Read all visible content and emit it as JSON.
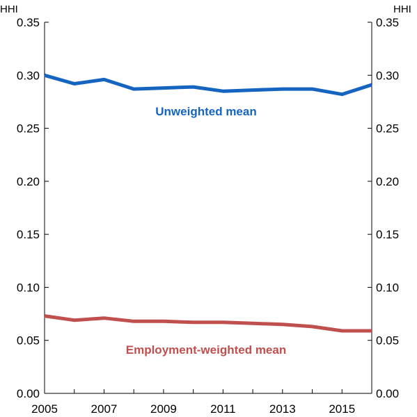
{
  "chart_data": {
    "type": "line",
    "title": "",
    "xlabel": "",
    "ylabel_left": "HHI",
    "ylabel_right": "HHI",
    "xlim": [
      2005,
      2016
    ],
    "ylim": [
      0,
      0.35
    ],
    "x_ticks": [
      "2005",
      "2007",
      "2009",
      "2011",
      "2013",
      "2015"
    ],
    "y_ticks": [
      "0.00",
      "0.05",
      "0.10",
      "0.15",
      "0.20",
      "0.25",
      "0.30",
      "0.35"
    ],
    "grid": false,
    "x": [
      2005,
      2006,
      2007,
      2008,
      2009,
      2010,
      2011,
      2012,
      2013,
      2014,
      2015,
      2016
    ],
    "series": [
      {
        "name": "Unweighted mean",
        "color": "#1565C0",
        "values": [
          0.3,
          0.292,
          0.296,
          0.287,
          0.288,
          0.289,
          0.285,
          0.286,
          0.287,
          0.287,
          0.282,
          0.291
        ]
      },
      {
        "name": "Employment-weighted mean",
        "color": "#C0504D",
        "values": [
          0.073,
          0.069,
          0.071,
          0.068,
          0.068,
          0.067,
          0.067,
          0.066,
          0.065,
          0.063,
          0.059,
          0.059
        ]
      }
    ]
  }
}
